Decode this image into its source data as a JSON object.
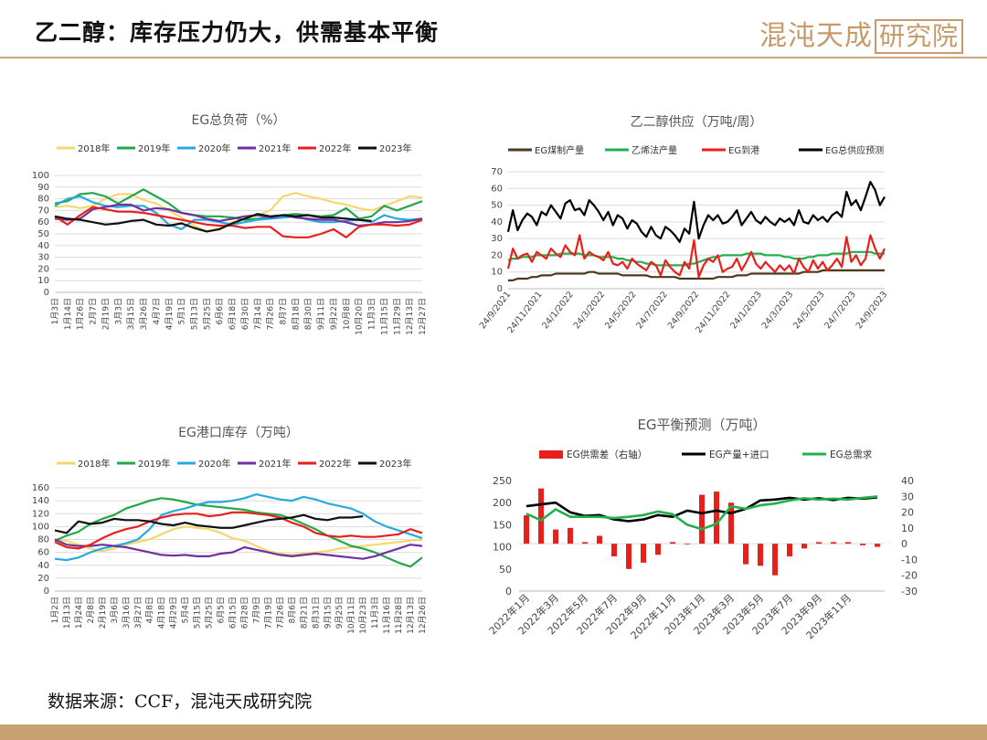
{
  "header": {
    "title": "乙二醇：库存压力仍大，供需基本平衡",
    "brand_part1": "混沌天成",
    "brand_part2": "研究院"
  },
  "footer": {
    "source": "数据来源：CCF，混沌天成研究院"
  },
  "colors": {
    "y2018": "#f5d76e",
    "y2019": "#22a84a",
    "y2020": "#29a9df",
    "y2021": "#7030a0",
    "y2022": "#e8201c",
    "y2023": "#111111",
    "coal": "#4a3b1e",
    "ethylene": "#22b04b",
    "port": "#e8201c",
    "total": "#000000",
    "gap": "#e8201c",
    "output": "#000000",
    "demand": "#22b04b"
  },
  "chart_data": [
    {
      "id": "load",
      "type": "line",
      "title": "EG总负荷（%）",
      "ylim": [
        0,
        100
      ],
      "yticks": [
        0,
        10,
        20,
        30,
        40,
        50,
        60,
        70,
        80,
        90,
        100
      ],
      "x_ticks": [
        "1月3日",
        "1月14日",
        "1月26日",
        "2月7日",
        "2月19日",
        "3月3日",
        "3月15日",
        "3月26日",
        "4月7日",
        "4月19日",
        "5月1日",
        "5月13日",
        "5月25日",
        "6月6日",
        "6月18日",
        "6月30日",
        "7月14日",
        "7月26日",
        "8月7日",
        "8月18日",
        "8月30日",
        "9月11日",
        "9月22日",
        "10月8日",
        "10月20日",
        "11月3日",
        "11月15日",
        "11月29日",
        "12月13日",
        "12月27日"
      ],
      "series": [
        {
          "name": "2018年",
          "color_key": "y2018",
          "values": [
            73,
            74,
            72,
            74,
            80,
            84,
            84,
            79,
            76,
            70,
            64,
            57,
            52,
            55,
            60,
            63,
            66,
            70,
            82,
            85,
            82,
            80,
            77,
            75,
            72,
            70,
            74,
            78,
            82,
            81
          ]
        },
        {
          "name": "2019年",
          "color_key": "y2019",
          "values": [
            76,
            78,
            84,
            85,
            82,
            76,
            82,
            88,
            82,
            76,
            68,
            66,
            65,
            65,
            64,
            62,
            63,
            64,
            66,
            67,
            66,
            65,
            66,
            72,
            63,
            65,
            74,
            70,
            74,
            78
          ]
        },
        {
          "name": "2020年",
          "color_key": "y2020",
          "values": [
            74,
            80,
            82,
            77,
            74,
            73,
            74,
            74,
            68,
            58,
            54,
            62,
            62,
            60,
            58,
            60,
            62,
            63,
            64,
            65,
            62,
            60,
            60,
            61,
            62,
            60,
            66,
            63,
            62,
            63
          ]
        },
        {
          "name": "2021年",
          "color_key": "y2021",
          "values": [
            63,
            62,
            63,
            71,
            73,
            75,
            75,
            70,
            72,
            71,
            68,
            66,
            63,
            61,
            63,
            65,
            66,
            64,
            66,
            64,
            63,
            62,
            62,
            60,
            57,
            58,
            60,
            60,
            61,
            63
          ]
        },
        {
          "name": "2022年",
          "color_key": "y2022",
          "values": [
            65,
            58,
            66,
            73,
            71,
            69,
            69,
            68,
            66,
            64,
            62,
            60,
            58,
            57,
            57,
            55,
            56,
            56,
            48,
            47,
            47,
            50,
            54,
            47,
            56,
            58,
            58,
            57,
            58,
            62
          ]
        },
        {
          "name": "2023年",
          "color_key": "y2023",
          "values": [
            65,
            63,
            62,
            60,
            58,
            59,
            61,
            62,
            58,
            57,
            59,
            55,
            52,
            54,
            59,
            63,
            67,
            65,
            66,
            65,
            66,
            64,
            64,
            63,
            62,
            61,
            null,
            null,
            null,
            null
          ]
        }
      ]
    },
    {
      "id": "supply",
      "type": "line",
      "title": "乙二醇供应（万吨/周）",
      "ylim": [
        0,
        70
      ],
      "yticks": [
        0,
        10,
        20,
        30,
        40,
        50,
        60,
        70
      ],
      "x_ticks": [
        "24/9/2021",
        "24/11/2021",
        "24/1/2022",
        "24/3/2022",
        "24/5/2022",
        "24/7/2022",
        "24/9/2022",
        "24/11/2022",
        "24/1/2023",
        "24/3/2023",
        "24/5/2023",
        "24/7/2023",
        "24/9/2023"
      ],
      "series": [
        {
          "name": "EG煤制产量",
          "color_key": "coal",
          "values": [
            5,
            5,
            6,
            6,
            6,
            7,
            7,
            8,
            8,
            8,
            9,
            9,
            9,
            9,
            9,
            9,
            9,
            10,
            10,
            9,
            9,
            9,
            9,
            9,
            8,
            8,
            8,
            8,
            8,
            8,
            7,
            7,
            7,
            7,
            7,
            7,
            6,
            6,
            6,
            6,
            6,
            6,
            6,
            6,
            7,
            7,
            7,
            7,
            8,
            8,
            8,
            9,
            9,
            9,
            9,
            9,
            9,
            9,
            9,
            9,
            9,
            9,
            10,
            10,
            10,
            10,
            11,
            11,
            11,
            11,
            11,
            11,
            11,
            11,
            11,
            11,
            11,
            11,
            11,
            11
          ]
        },
        {
          "name": "乙烯法产量",
          "color_key": "ethylene",
          "values": [
            17,
            18,
            18,
            19,
            19,
            19,
            20,
            20,
            20,
            20,
            20,
            21,
            21,
            21,
            21,
            21,
            20,
            20,
            20,
            19,
            19,
            19,
            19,
            18,
            18,
            17,
            17,
            16,
            16,
            15,
            15,
            14,
            14,
            14,
            14,
            14,
            14,
            14,
            15,
            15,
            16,
            17,
            18,
            19,
            19,
            20,
            20,
            20,
            20,
            20,
            21,
            21,
            21,
            21,
            20,
            20,
            20,
            20,
            19,
            19,
            18,
            18,
            18,
            19,
            19,
            20,
            20,
            20,
            21,
            21,
            21,
            21,
            22,
            22,
            22,
            22,
            22,
            21,
            21,
            21
          ]
        },
        {
          "name": "EG到港",
          "color_key": "port",
          "values": [
            12,
            24,
            18,
            20,
            21,
            16,
            22,
            20,
            18,
            24,
            21,
            19,
            26,
            22,
            20,
            32,
            18,
            22,
            20,
            19,
            17,
            22,
            15,
            14,
            16,
            12,
            18,
            15,
            13,
            11,
            16,
            14,
            8,
            17,
            13,
            10,
            8,
            16,
            12,
            29,
            7,
            14,
            18,
            16,
            20,
            10,
            12,
            13,
            18,
            11,
            16,
            22,
            15,
            12,
            16,
            13,
            10,
            14,
            11,
            14,
            9,
            18,
            13,
            10,
            17,
            12,
            16,
            11,
            14,
            18,
            13,
            31,
            16,
            20,
            14,
            18,
            32,
            24,
            18,
            24
          ]
        },
        {
          "name": "EG总供应预测",
          "color_key": "total",
          "values": [
            34,
            47,
            35,
            41,
            45,
            43,
            38,
            46,
            44,
            50,
            46,
            42,
            51,
            53,
            47,
            48,
            44,
            53,
            50,
            46,
            41,
            46,
            38,
            44,
            42,
            36,
            41,
            39,
            34,
            31,
            37,
            32,
            30,
            37,
            35,
            32,
            28,
            36,
            33,
            52,
            30,
            38,
            44,
            41,
            44,
            39,
            40,
            43,
            47,
            38,
            42,
            46,
            41,
            39,
            43,
            40,
            38,
            42,
            40,
            42,
            38,
            47,
            40,
            39,
            44,
            41,
            43,
            40,
            44,
            46,
            43,
            58,
            50,
            53,
            47,
            55,
            64,
            59,
            50,
            55
          ]
        }
      ]
    },
    {
      "id": "inventory",
      "type": "line",
      "title": "EG港口库存（万吨）",
      "ylim": [
        0,
        160
      ],
      "yticks": [
        0,
        20,
        40,
        60,
        80,
        100,
        120,
        140,
        160
      ],
      "x_ticks": [
        "1月2日",
        "1月13日",
        "1月24日",
        "2月8日",
        "2月19日",
        "3月6日",
        "3月16日",
        "3月27日",
        "4月8日",
        "4月18日",
        "4月29日",
        "5月4日",
        "5月15日",
        "5月25日",
        "6月5日",
        "6月15日",
        "6月28日",
        "7月9日",
        "7月19日",
        "7月26日",
        "8月6日",
        "8月21日",
        "8月31日",
        "9月15日",
        "9月25日",
        "10月11日",
        "10月23日",
        "11月3日",
        "11月16日",
        "11月28日",
        "12月13日",
        "12月26日"
      ],
      "series": [
        {
          "name": "2018年",
          "color_key": "y2018",
          "values": [
            80,
            78,
            72,
            66,
            62,
            66,
            72,
            76,
            80,
            88,
            96,
            100,
            98,
            96,
            90,
            82,
            78,
            70,
            62,
            58,
            56,
            58,
            60,
            62,
            66,
            68,
            70,
            72,
            74,
            76,
            78,
            80
          ]
        },
        {
          "name": "2019年",
          "color_key": "y2019",
          "values": [
            78,
            86,
            92,
            104,
            112,
            118,
            128,
            134,
            140,
            144,
            142,
            138,
            134,
            132,
            130,
            128,
            126,
            122,
            120,
            118,
            112,
            104,
            96,
            86,
            78,
            70,
            66,
            60,
            52,
            44,
            38,
            52
          ]
        },
        {
          "name": "2020年",
          "color_key": "y2020",
          "values": [
            50,
            48,
            52,
            60,
            66,
            70,
            74,
            80,
            96,
            118,
            124,
            128,
            134,
            138,
            138,
            140,
            144,
            150,
            146,
            142,
            140,
            146,
            142,
            136,
            132,
            128,
            120,
            108,
            100,
            94,
            88,
            82
          ]
        },
        {
          "name": "2021年",
          "color_key": "y2021",
          "values": [
            80,
            72,
            70,
            70,
            72,
            70,
            68,
            64,
            60,
            56,
            55,
            56,
            54,
            54,
            58,
            60,
            68,
            64,
            60,
            56,
            54,
            56,
            58,
            56,
            54,
            52,
            50,
            54,
            60,
            66,
            72,
            70
          ]
        },
        {
          "name": "2022年",
          "color_key": "y2022",
          "values": [
            76,
            68,
            66,
            72,
            82,
            90,
            96,
            100,
            108,
            114,
            118,
            120,
            120,
            116,
            118,
            122,
            122,
            120,
            118,
            114,
            106,
            100,
            90,
            86,
            84,
            86,
            84,
            84,
            86,
            88,
            96,
            90
          ]
        },
        {
          "name": "2023年",
          "color_key": "y2023",
          "values": [
            94,
            90,
            108,
            104,
            106,
            112,
            110,
            110,
            108,
            104,
            102,
            106,
            102,
            100,
            98,
            98,
            102,
            106,
            110,
            112,
            114,
            118,
            112,
            110,
            114,
            114,
            116,
            null,
            null,
            null,
            null,
            null
          ]
        }
      ]
    },
    {
      "id": "balance",
      "type": "bar+line",
      "title": "EG平衡预测（万吨）",
      "ylim": [
        0,
        250
      ],
      "yticks": [
        0,
        50,
        100,
        150,
        200,
        250
      ],
      "y2lim": [
        -30,
        40
      ],
      "y2ticks": [
        -30,
        -20,
        -10,
        0,
        10,
        20,
        30,
        40
      ],
      "x_ticks": [
        "2022年1月",
        "2022年3月",
        "2022年5月",
        "2022年7月",
        "2022年9月",
        "2022年11月",
        "2023年1月",
        "2023年3月",
        "2023年5月",
        "2023年7月",
        "2023年9月",
        "2023年11月"
      ],
      "series": [
        {
          "name": "EG供需差（右轴）",
          "axis": "right",
          "kind": "bar",
          "color_key": "gap",
          "values": [
            18,
            35,
            9,
            10,
            1,
            5,
            -8,
            -16,
            -12,
            -7,
            1,
            0,
            31,
            33,
            26,
            -13,
            -14,
            -20,
            -8,
            -3,
            1,
            1,
            1,
            -1,
            -2
          ]
        },
        {
          "name": "EG产量+进口",
          "axis": "left",
          "kind": "line",
          "color_key": "output",
          "values": [
            192,
            196,
            200,
            178,
            170,
            172,
            162,
            158,
            162,
            172,
            168,
            182,
            176,
            182,
            176,
            186,
            205,
            207,
            211,
            207,
            210,
            206,
            211,
            209,
            212
          ]
        },
        {
          "name": "EG总需求",
          "axis": "left",
          "kind": "line",
          "color_key": "demand",
          "values": [
            175,
            160,
            185,
            168,
            168,
            168,
            165,
            168,
            172,
            180,
            174,
            150,
            140,
            152,
            192,
            186,
            194,
            198,
            205,
            210,
            207,
            209,
            207,
            211,
            214
          ]
        }
      ]
    }
  ]
}
